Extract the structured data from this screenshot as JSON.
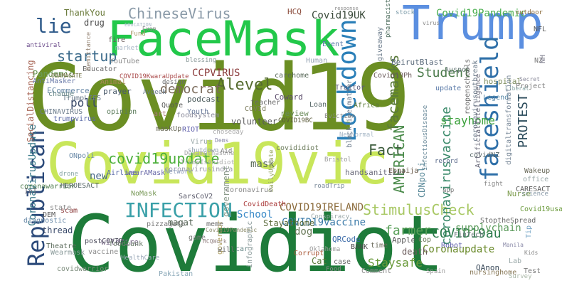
{
  "words": [
    {
      "text": "Covid19",
      "color": "#6b8e23"
    },
    {
      "text": "Covidiot",
      "color": "#1e7b3a"
    },
    {
      "text": "Covid19vic",
      "color": "#c8e65a"
    },
    {
      "text": "FaceMask",
      "color": "#22c84a"
    },
    {
      "text": "Trump",
      "color": "#5b8fe0"
    },
    {
      "text": "faceshield",
      "color": "#2e6fa8"
    },
    {
      "text": "Lockdown",
      "color": "#2a7fb8"
    },
    {
      "text": "Republican",
      "color": "#2c4a7a"
    },
    {
      "text": "INFECTION",
      "color": "#3aa0a8"
    },
    {
      "text": "StimulusCheck",
      "color": "#a8c864"
    },
    {
      "text": "covid19update",
      "color": "#4caf3a"
    },
    {
      "text": "Alevel",
      "color": "#556b2f"
    },
    {
      "text": "startup",
      "color": "#3a6a8a"
    },
    {
      "text": "ChineseVirus",
      "color": "#8a9aa8"
    },
    {
      "text": "lie",
      "color": "#2e5a8a"
    },
    {
      "text": "Student",
      "color": "#4a7a4a"
    },
    {
      "text": "democrat",
      "color": "#7a6a5a"
    },
    {
      "text": "facemasks",
      "color": "#5a7a3a"
    },
    {
      "text": "coronavirusvaccine",
      "color": "#3a8a6a"
    },
    {
      "text": "PROTEST",
      "color": "#2a4a5a"
    },
    {
      "text": "Fact",
      "color": "#3a5a3a"
    },
    {
      "text": "AMERICAN",
      "color": "#4a8a4a"
    },
    {
      "text": "COVID19au",
      "color": "#2a7a4a"
    },
    {
      "text": "farmer",
      "color": "#5aa05a"
    },
    {
      "text": "Coronaupdate",
      "color": "#6a8a2a"
    },
    {
      "text": "supplychain",
      "color": "#5a9a5a"
    },
    {
      "text": "Staysafe",
      "color": "#6a9a3a"
    },
    {
      "text": "COVID19IRELAND",
      "color": "#8a6a3a"
    },
    {
      "text": "COVID19vaccine",
      "color": "#3a7aa8"
    },
    {
      "text": "Covid19Pandemic",
      "color": "#4caf50"
    },
    {
      "text": "Covid19UK",
      "color": "#3a4a3a"
    },
    {
      "text": "Pandemic",
      "color": "#6a9a5a"
    },
    {
      "text": "poll",
      "color": "#3a4a6a"
    },
    {
      "text": "stayhome",
      "color": "#3aa03a"
    },
    {
      "text": "mask",
      "color": "#5a6a5a"
    },
    {
      "text": "CoronaVirusUpdate",
      "color": "#3a7a8a"
    },
    {
      "text": "SocialDistancing",
      "color": "#aa6a5a"
    },
    {
      "text": "ThankYou",
      "color": "#6a7a3a"
    },
    {
      "text": "drug",
      "color": "#4a4a4a"
    },
    {
      "text": "ECommerce",
      "color": "#6a8aa8"
    },
    {
      "text": "CHINAVIRUS",
      "color": "#6a7a8a"
    },
    {
      "text": "new",
      "color": "#4a6a8a"
    },
    {
      "text": "School",
      "color": "#3a8ac8"
    },
    {
      "text": "dog",
      "color": "#6a7a5a"
    },
    {
      "text": "volunteer",
      "color": "#5a5a5a"
    },
    {
      "text": "CCPVIRUS",
      "color": "#8a3a3a"
    },
    {
      "text": "government",
      "color": "#8a9a8a"
    },
    {
      "text": "Stayathome",
      "color": "#5a6a3a"
    },
    {
      "text": "CDNpoli",
      "color": "#5a8a9a"
    },
    {
      "text": "Nurse",
      "color": "#7a9a4a"
    },
    {
      "text": "BeirutBlast",
      "color": "#5a6a7a"
    },
    {
      "text": "hospital",
      "color": "#7a8a5a"
    },
    {
      "text": "update",
      "color": "#5a7aa8"
    },
    {
      "text": "QAnon",
      "color": "#3a4a5a"
    },
    {
      "text": "pharmacist",
      "color": "#4a6a5a"
    },
    {
      "text": "Event",
      "color": "#5a7aa8"
    },
    {
      "text": "HCQ",
      "color": "#8a4a3a"
    },
    {
      "text": "stock",
      "color": "#7a9aa8"
    },
    {
      "text": "outdoor",
      "color": "#8a6a3a"
    },
    {
      "text": "Human",
      "color": "#9aa8b8"
    },
    {
      "text": "Africa",
      "color": "#5a7a3a"
    },
    {
      "text": "Traitor",
      "color": "#5a5a7a"
    },
    {
      "text": "Eviction",
      "color": "#8a8a8a"
    },
    {
      "text": "handsanitizer",
      "color": "#6a6a7a"
    },
    {
      "text": "wildfire",
      "color": "#7a6a8a"
    },
    {
      "text": "thread",
      "color": "#3a4a6a"
    },
    {
      "text": "Wearmask",
      "color": "#8a9a9a"
    },
    {
      "text": "covidwarrior",
      "color": "#7a8a7a"
    },
    {
      "text": "coronawarrior",
      "color": "#4a7a4a"
    },
    {
      "text": "diagnostic",
      "color": "#6a8aa8"
    },
    {
      "text": "Theatre",
      "color": "#5a6a5a"
    },
    {
      "text": "scam",
      "color": "#8a3a3a"
    },
    {
      "text": "magat",
      "color": "#4a5a4a"
    },
    {
      "text": "meme",
      "color": "#6a6a6a"
    },
    {
      "text": "Corrupt",
      "color": "#aa5a3a"
    },
    {
      "text": "BANK",
      "color": "#4a4a4a"
    },
    {
      "text": "death",
      "color": "#6a5a5a"
    },
    {
      "text": "Test",
      "color": "#7a7a7a"
    },
    {
      "text": "nursinghome",
      "color": "#8a7a5a"
    },
    {
      "text": "Cat",
      "color": "#5a7a3a"
    },
    {
      "text": "case",
      "color": "#6a6a6a"
    },
    {
      "text": "Coward",
      "color": "#5a4a6a"
    },
    {
      "text": "podcast",
      "color": "#4a5a5a"
    },
    {
      "text": "foodsystem",
      "color": "#8a8a9a"
    },
    {
      "text": "review",
      "color": "#6a8a5a"
    },
    {
      "text": "Loan",
      "color": "#5a6a6a"
    },
    {
      "text": "COVID19BC",
      "color": "#5a5a3a"
    },
    {
      "text": "NewNormal",
      "color": "#a8b8c8"
    },
    {
      "text": "Quote",
      "color": "#5a5a5a"
    },
    {
      "text": "prayer",
      "color": "#4a5a6a"
    },
    {
      "text": "TrumpLIES",
      "color": "#6a7a8a"
    },
    {
      "text": "trumpvirus",
      "color": "#5a6aa8"
    },
    {
      "text": "opinion",
      "color": "#5a7a5a"
    },
    {
      "text": "Educator",
      "color": "#6a6a6a"
    },
    {
      "text": "YouTube",
      "color": "#8a8a8a"
    },
    {
      "text": "antiviral",
      "color": "#6a4a8a"
    },
    {
      "text": "Remittance",
      "color": "#9a8a7a"
    },
    {
      "text": "fire",
      "color": "#6a5a5a"
    },
    {
      "text": "OBAMAGATE",
      "color": "#6a6a3a"
    },
    {
      "text": "Airline",
      "color": "#5a6aa8"
    },
    {
      "text": "wearAMask",
      "color": "#6a6aa8"
    },
    {
      "text": "coronavirusindia",
      "color": "#9a9aa8"
    },
    {
      "text": "ONpoli",
      "color": "#6a8aa8"
    },
    {
      "text": "HEROESACT",
      "color": "#5a6a6a"
    },
    {
      "text": "drone",
      "color": "#8aa8a8"
    },
    {
      "text": "SarsCoV2",
      "color": "#5a5a6a"
    },
    {
      "text": "NoMask",
      "color": "#7a9a5a"
    },
    {
      "text": "pizzagate",
      "color": "#7a7a7a"
    },
    {
      "text": "RIOT",
      "color": "#5a5aa8"
    },
    {
      "text": "Youth",
      "color": "#6a7a9a"
    },
    {
      "text": "maskUp",
      "color": "#6a6a5a"
    },
    {
      "text": "Network",
      "color": "#8a9ab8"
    },
    {
      "text": "state",
      "color": "#8a8a8a"
    },
    {
      "text": "DEM",
      "color": "#5a5a5a"
    },
    {
      "text": "game",
      "color": "#7a7a7a"
    },
    {
      "text": "postCOVID",
      "color": "#4a4a5a"
    },
    {
      "text": "vaccine",
      "color": "#8a8a8a"
    },
    {
      "text": "Pakistan",
      "color": "#8aa8b8"
    },
    {
      "text": "QRCode",
      "color": "#3a6aa8"
    },
    {
      "text": "Apple",
      "color": "#5a5a5a"
    },
    {
      "text": "Cop",
      "color": "#6a7a5a"
    },
    {
      "text": "Robot",
      "color": "#5a5aa8"
    },
    {
      "text": "FinTech",
      "color": "#6a7a7a"
    },
    {
      "text": "StoptheSpread",
      "color": "#6a6a6a"
    },
    {
      "text": "Tip",
      "color": "#7aa8c8"
    },
    {
      "text": "Covid19usa",
      "color": "#6a9a3a"
    },
    {
      "text": "covidNZ",
      "color": "#5a6a6a"
    },
    {
      "text": "Wakeup",
      "color": "#6a6a5a"
    },
    {
      "text": "CARESACT",
      "color": "#5a5a5a"
    },
    {
      "text": "office",
      "color": "#9aa8a8"
    },
    {
      "text": "Secret",
      "color": "#8a8a9a"
    },
    {
      "text": "Project",
      "color": "#7a7a7a"
    },
    {
      "text": "Auspol",
      "color": "#6a7a7a"
    },
    {
      "text": "giveaway",
      "color": "#6a7a8a"
    },
    {
      "text": "Legend",
      "color": "#5a8aa8"
    },
    {
      "text": "virus",
      "color": "#8a8a8a"
    },
    {
      "text": "Liberal",
      "color": "#8aa8a8"
    },
    {
      "text": "Covid19Ph",
      "color": "#6a5a5a"
    },
    {
      "text": "teacher",
      "color": "#6a6a6a"
    },
    {
      "text": "carehome",
      "color": "#5a6a5a"
    },
    {
      "text": "AntiMasker",
      "color": "#6a7aa8"
    },
    {
      "text": "change",
      "color": "#6a8a8a"
    },
    {
      "text": "Animal",
      "color": "#aa8a5a"
    },
    {
      "text": "COVID19KwaraUpdate",
      "color": "#aa4a4a"
    },
    {
      "text": "blessing",
      "color": "#8a9a9a"
    },
    {
      "text": "market",
      "color": "#aab8c8"
    },
    {
      "text": "design",
      "color": "#6a6a6a"
    },
    {
      "text": "Avgeek",
      "color": "#6a7a8a"
    },
    {
      "text": "record",
      "color": "#5a6a8a"
    },
    {
      "text": "app",
      "color": "#7a7a7a"
    },
    {
      "text": "Ebnaija",
      "color": "#6a5a4a"
    },
    {
      "text": "DailyUpdate",
      "color": "#9aa86a"
    },
    {
      "text": "InfectiousDisease",
      "color": "#6a8a9a"
    },
    {
      "text": "blacklivesmatter",
      "color": "#6a7a8a"
    },
    {
      "text": "COVId",
      "color": "#7a7a5a"
    },
    {
      "text": "covididiot",
      "color": "#6a7a5a"
    },
    {
      "text": "CovidDeath",
      "color": "#aa3a3a"
    },
    {
      "text": "Covid19Pandemic",
      "color": "#8a8a6a"
    },
    {
      "text": "HCQWork",
      "color": "#9a8a8a"
    },
    {
      "text": "Fund",
      "color": "#aa9a6a"
    },
    {
      "text": "Exam",
      "color": "#8a8a8a"
    },
    {
      "text": "EDUCATION",
      "color": "#aab8c8"
    },
    {
      "text": "IoT",
      "color": "#6a6a7a"
    },
    {
      "text": "response",
      "color": "#8a8a8a"
    },
    {
      "text": "foodbank",
      "color": "#6a7a6a"
    },
    {
      "text": "HealthCare",
      "color": "#9aa8b8"
    },
    {
      "text": "car",
      "color": "#6a8a8a"
    },
    {
      "text": "infographic",
      "color": "#8a9a9a"
    },
    {
      "text": "Comment",
      "color": "#8a8a8a"
    },
    {
      "text": "Lab",
      "color": "#9aa8a8"
    },
    {
      "text": "coronavirusoutbreak",
      "color": "#6a7a8a"
    },
    {
      "text": "ArtificialIntelligence",
      "color": "#6a6a7a"
    },
    {
      "text": "digitaltransformation",
      "color": "#7a8a9a"
    },
    {
      "text": "reopenschools",
      "color": "#6a6a6a"
    },
    {
      "text": "NFL",
      "color": "#5a5a5a"
    },
    {
      "text": "fight",
      "color": "#8a8a8a"
    },
    {
      "text": "art",
      "color": "#aa7a7a"
    },
    {
      "text": "shutdown",
      "color": "#8a9aa8"
    },
    {
      "text": "Virus",
      "color": "#9aa8a8"
    },
    {
      "text": "coronavirus",
      "color": "#8a8a8a"
    },
    {
      "text": "roadTrip",
      "color": "#7a8a9a"
    },
    {
      "text": "governor",
      "color": "#aa9a5a"
    },
    {
      "text": "will",
      "color": "#6a6a6a"
    },
    {
      "text": "time",
      "color": "#6a6a5a"
    },
    {
      "text": "Food",
      "color": "#8a8a8a"
    },
    {
      "text": "science",
      "color": "#8a9aa8"
    },
    {
      "text": "Oklahoma",
      "color": "#9a9a9a"
    },
    {
      "text": "NZ",
      "color": "#7a7a7a"
    },
    {
      "text": "NH",
      "color": "#7a7a8a"
    },
    {
      "text": "choseday",
      "color": "#aaaaaa"
    },
    {
      "text": "Dems",
      "color": "#8a8aa8"
    },
    {
      "text": "TrumpIsAnIdiot",
      "color": "#aaaaaa"
    },
    {
      "text": "Dexamethasone",
      "color": "#aaaaaa"
    },
    {
      "text": "Aid",
      "color": "#7a7a7a"
    },
    {
      "text": "Bristol",
      "color": "#9a9a9a"
    },
    {
      "text": "Conspiracy",
      "color": "#9aa8a8"
    },
    {
      "text": "Survey",
      "color": "#aab8a8"
    },
    {
      "text": "Spain",
      "color": "#9a9a9a"
    },
    {
      "text": "Manila",
      "color": "#8a8aa8"
    },
    {
      "text": "Kids",
      "color": "#8a8a8a"
    }
  ]
}
